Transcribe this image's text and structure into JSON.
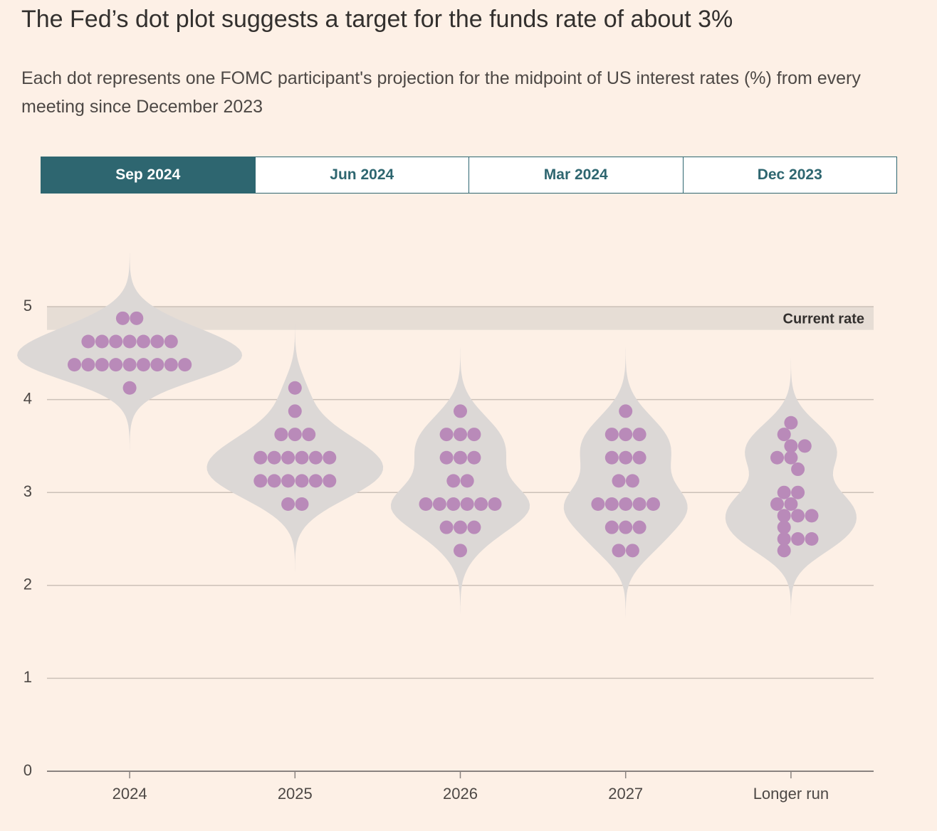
{
  "chart_data": {
    "type": "dot-plot",
    "title": "The Fed’s dot plot suggests a target for the funds rate of about 3%",
    "subtitle": "Each dot represents one FOMC participant's projection for the midpoint of US interest rates (%) from every meeting since December 2023",
    "tabs": [
      "Sep 2024",
      "Jun 2024",
      "Mar 2024",
      "Dec 2023"
    ],
    "active_tab": 0,
    "categories": [
      "2024",
      "2025",
      "2026",
      "2027",
      "Longer run"
    ],
    "color": "#b98ab9",
    "violin_color": "#dcd8d6",
    "values": [
      [
        4.875,
        4.875,
        4.625,
        4.625,
        4.625,
        4.625,
        4.625,
        4.625,
        4.625,
        4.375,
        4.375,
        4.375,
        4.375,
        4.375,
        4.375,
        4.375,
        4.375,
        4.375,
        4.125
      ],
      [
        4.125,
        3.875,
        3.625,
        3.625,
        3.625,
        3.375,
        3.375,
        3.375,
        3.375,
        3.375,
        3.375,
        3.125,
        3.125,
        3.125,
        3.125,
        3.125,
        3.125,
        2.875,
        2.875
      ],
      [
        3.875,
        3.625,
        3.625,
        3.625,
        3.375,
        3.375,
        3.375,
        3.125,
        3.125,
        2.875,
        2.875,
        2.875,
        2.875,
        2.875,
        2.875,
        2.625,
        2.625,
        2.625,
        2.375
      ],
      [
        3.875,
        3.625,
        3.625,
        3.625,
        3.375,
        3.375,
        3.375,
        3.125,
        3.125,
        2.875,
        2.875,
        2.875,
        2.875,
        2.875,
        2.625,
        2.625,
        2.625,
        2.375,
        2.375
      ],
      [
        3.75,
        3.625,
        3.5,
        3.5,
        3.375,
        3.375,
        3.25,
        3.0,
        3.0,
        2.875,
        2.875,
        2.75,
        2.75,
        2.75,
        2.625,
        2.5,
        2.5,
        2.5,
        2.375
      ]
    ],
    "current_rate": {
      "label": "Current rate",
      "range": [
        4.75,
        5
      ]
    },
    "ylim": [
      0,
      5
    ],
    "yticks": [
      0,
      1,
      2,
      3,
      4,
      5
    ],
    "grid": true
  }
}
